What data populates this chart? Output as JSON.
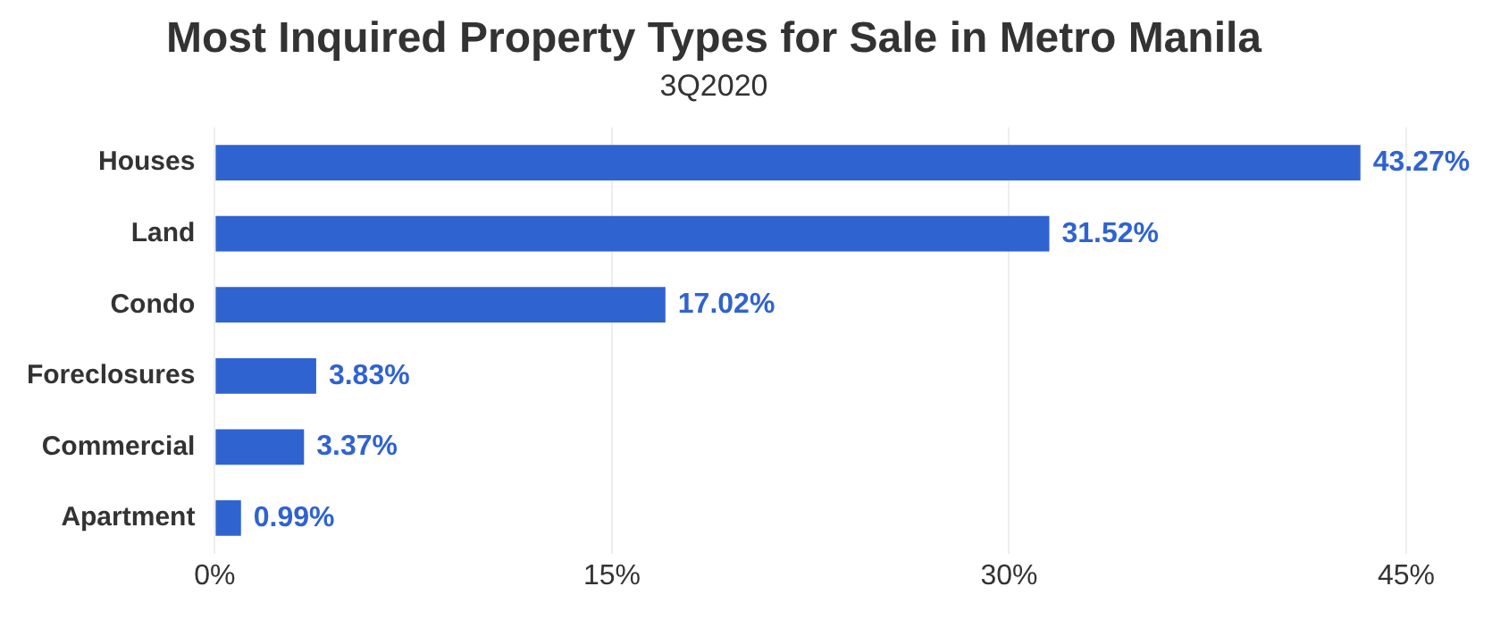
{
  "chart_data": {
    "type": "bar",
    "orientation": "horizontal",
    "title": "Most Inquired Property Types for Sale in Metro Manila",
    "subtitle": "3Q2020",
    "categories": [
      "Houses",
      "Land",
      "Condo",
      "Foreclosures",
      "Commercial",
      "Apartment"
    ],
    "values": [
      43.27,
      31.52,
      17.02,
      3.83,
      3.37,
      0.99
    ],
    "value_labels": [
      "43.27%",
      "31.52%",
      "17.02%",
      "3.83%",
      "3.37%",
      "0.99%"
    ],
    "color": "#2f63d0",
    "xlim": [
      0,
      45
    ],
    "xticks": [
      {
        "value": 0,
        "label": "0%"
      },
      {
        "value": 15,
        "label": "15%"
      },
      {
        "value": 30,
        "label": "30%"
      },
      {
        "value": 45,
        "label": "45%"
      }
    ],
    "grid": "x",
    "legend": false
  }
}
